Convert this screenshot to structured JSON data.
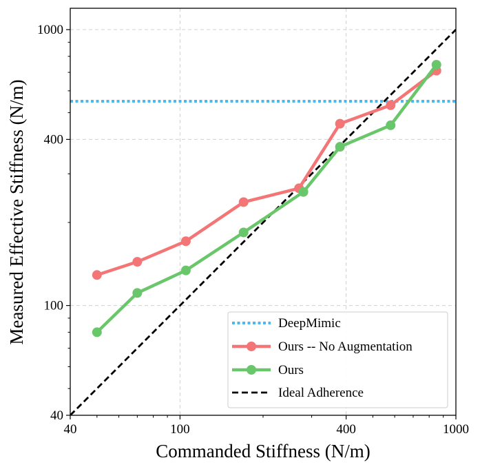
{
  "chart_data": {
    "type": "line",
    "scale": "log-log",
    "xlabel": "Commanded Stiffness (N/m)",
    "ylabel": "Measured Effective Stiffness (N/m)",
    "xlim": [
      40,
      1000
    ],
    "ylim": [
      40,
      1000
    ],
    "xticks": [
      {
        "value": 40,
        "label": "40"
      },
      {
        "value": 100,
        "label": "100"
      },
      {
        "value": 400,
        "label": "400"
      },
      {
        "value": 1000,
        "label": "1000"
      }
    ],
    "yticks": [
      {
        "value": 40,
        "label": "40"
      },
      {
        "value": 100,
        "label": "100"
      },
      {
        "value": 400,
        "label": "400"
      },
      {
        "value": 1000,
        "label": "1000"
      }
    ],
    "grid": true,
    "legend_position": "bottom-right",
    "series": [
      {
        "name": "DeepMimic",
        "style": "dotted",
        "color": "#4db8ee",
        "constant_y": 550
      },
      {
        "name": "Ours -- No Augmentation",
        "style": "line-marker",
        "color": "#f47575",
        "points": [
          {
            "x": 50,
            "y": 129
          },
          {
            "x": 70,
            "y": 144
          },
          {
            "x": 105,
            "y": 171
          },
          {
            "x": 170,
            "y": 237
          },
          {
            "x": 270,
            "y": 266
          },
          {
            "x": 380,
            "y": 456
          },
          {
            "x": 580,
            "y": 532
          },
          {
            "x": 850,
            "y": 710
          }
        ]
      },
      {
        "name": "Ours",
        "style": "line-marker",
        "color": "#6ac66a",
        "points": [
          {
            "x": 50,
            "y": 80
          },
          {
            "x": 70,
            "y": 111
          },
          {
            "x": 105,
            "y": 134
          },
          {
            "x": 170,
            "y": 184
          },
          {
            "x": 280,
            "y": 258
          },
          {
            "x": 380,
            "y": 376
          },
          {
            "x": 580,
            "y": 450
          },
          {
            "x": 850,
            "y": 746
          }
        ]
      },
      {
        "name": "Ideal Adherence",
        "style": "dashed",
        "color": "#000000",
        "ideal": true
      }
    ]
  }
}
